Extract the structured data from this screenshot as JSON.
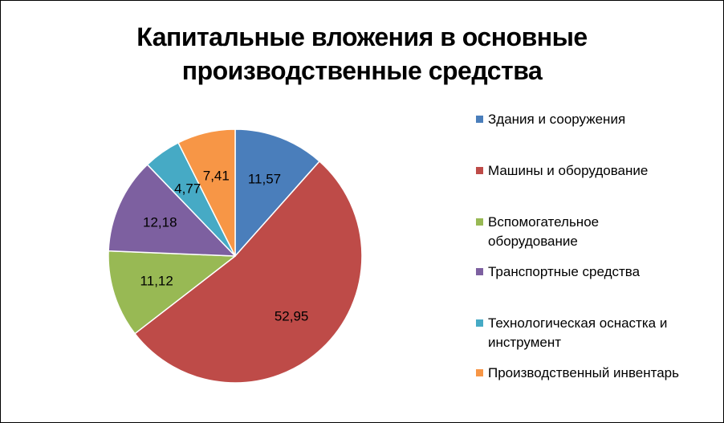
{
  "chart_data": {
    "type": "pie",
    "title": "Капитальные вложения в основные производственные средства",
    "title_lines": [
      "Капитальные вложения в основные",
      "производственные средства"
    ],
    "categories": [
      "Здания и сооружения",
      "Машины и оборудование",
      "Вспомогательное оборудование",
      "Транспортные средства",
      "Технологическая оснастка и инструмент",
      "Производственный инвентарь"
    ],
    "values": [
      11.57,
      52.95,
      11.12,
      12.18,
      4.77,
      7.41
    ],
    "data_labels": [
      "11,57",
      "52,95",
      "11,12",
      "12,18",
      "4,77",
      "7,41"
    ],
    "colors": [
      "#4A7EBB",
      "#BE4B48",
      "#98B954",
      "#7D60A0",
      "#46AAC5",
      "#F79646"
    ],
    "start_angle_deg": 0,
    "direction": "clockwise",
    "legend_position": "right"
  },
  "legend": {
    "items": [
      {
        "lines": [
          "Здания и сооружения"
        ]
      },
      {
        "lines": [
          "Машины и оборудование"
        ]
      },
      {
        "lines": [
          "Вспомогательное",
          "оборудование"
        ]
      },
      {
        "lines": [
          "Транспортные средства"
        ]
      },
      {
        "lines": [
          "Технологическая оснастка и",
          "инструмент"
        ]
      },
      {
        "lines": [
          "Производственный инвентарь"
        ]
      }
    ]
  }
}
